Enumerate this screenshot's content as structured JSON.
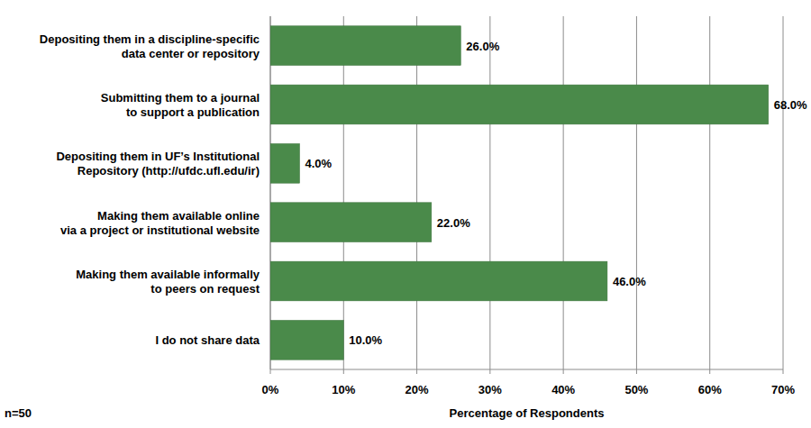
{
  "chart_data": {
    "type": "bar",
    "orientation": "horizontal",
    "categories": [
      "Depositing them in a discipline-specific\ndata center or repository",
      "Submitting them to a journal\nto support a publication",
      "Depositing them in UF’s Institutional\nRepository (http://ufdc.ufl.edu/ir)",
      "Making them available online\nvia a project or institutional website",
      "Making them available informally\nto peers on request",
      "I do not share data"
    ],
    "values": [
      26.0,
      68.0,
      4.0,
      22.0,
      46.0,
      10.0
    ],
    "value_labels": [
      "26.0%",
      "68.0%",
      "4.0%",
      "22.0%",
      "46.0%",
      "10.0%"
    ],
    "data_labels": true,
    "color": "#4a8a4a",
    "xlabel": "Percentage of Respondents",
    "xlim": [
      0,
      70
    ],
    "xticks": [
      {
        "value": 0,
        "label": "0%"
      },
      {
        "value": 10,
        "label": "10%"
      },
      {
        "value": 20,
        "label": "20%"
      },
      {
        "value": 30,
        "label": "30%"
      },
      {
        "value": 40,
        "label": "40%"
      },
      {
        "value": 50,
        "label": "50%"
      },
      {
        "value": 60,
        "label": "60%"
      },
      {
        "value": 70,
        "label": "70%"
      }
    ],
    "grid": true,
    "annotations": [
      "n=50"
    ]
  }
}
